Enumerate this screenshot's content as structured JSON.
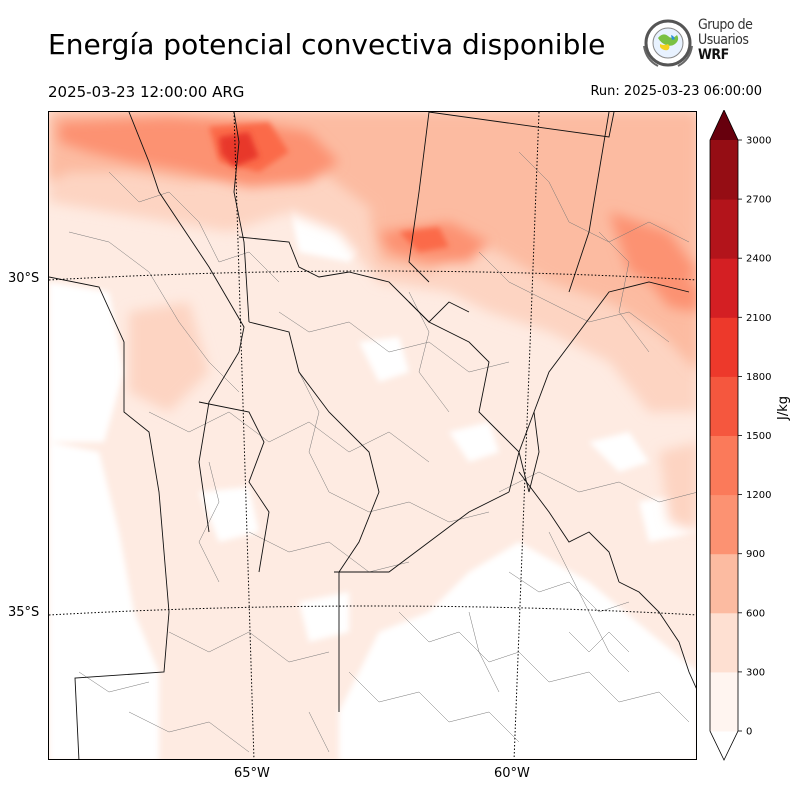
{
  "title": "Energía potencial convectiva disponible",
  "valid_time": "2025-03-23 12:00:00 ARG",
  "run_time": "Run: 2025-03-23 06:00:00",
  "logo": {
    "line1": "Grupo de",
    "line2": "Usuarios",
    "line3": "WRF"
  },
  "map": {
    "lat_labels": [
      "30°S",
      "35°S"
    ],
    "lon_labels": [
      "65°W",
      "60°W"
    ]
  },
  "colorbar": {
    "unit": "J/kg",
    "levels": [
      0,
      300,
      600,
      900,
      1200,
      1500,
      1800,
      2100,
      2400,
      2700,
      3000
    ],
    "level_labels": [
      "0",
      "300",
      "600",
      "900",
      "1200",
      "1500",
      "1800",
      "2100",
      "2400",
      "2700",
      "3000"
    ],
    "colors": [
      "#fff5f0",
      "#fee0d2",
      "#fcbba1",
      "#fc9272",
      "#fb7a5a",
      "#f5573e",
      "#ed392b",
      "#d41f23",
      "#b3141b",
      "#950d14",
      "#67000d"
    ]
  }
}
